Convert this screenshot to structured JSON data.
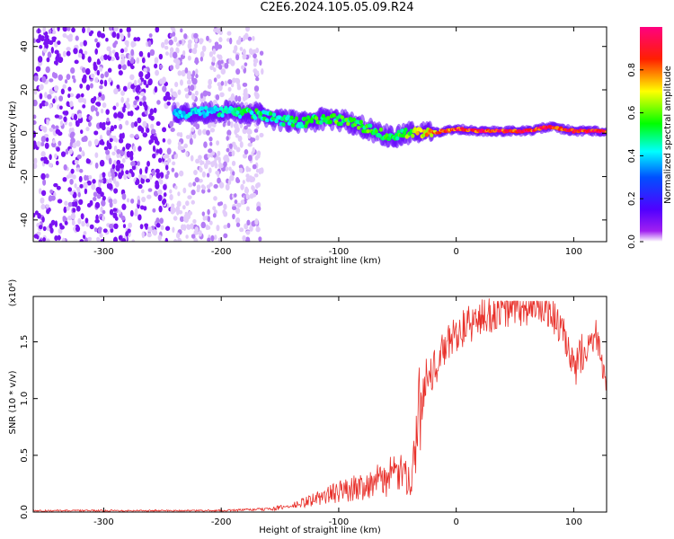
{
  "title": "C2E6.2024.105.05.09.R24",
  "chart_data": [
    {
      "type": "heatmap",
      "xlabel": "Height of straight line (km)",
      "ylabel": "Frequency (Hz)",
      "xlim": [
        -360,
        128
      ],
      "ylim": [
        -50,
        49
      ],
      "xticks": [
        -300,
        -200,
        -100,
        0,
        100
      ],
      "yticks": [
        -40,
        -20,
        0,
        20,
        40
      ],
      "colorbar": {
        "label": "Normalized spectral amplitude",
        "range": [
          0,
          1
        ],
        "ticks": [
          "0.0",
          "0.2",
          "0.4",
          "0.6",
          "0.8"
        ],
        "colormap": [
          "#ffffff",
          "#7f00ff",
          "#0000ff",
          "#00ffff",
          "#00ff00",
          "#ffff00",
          "#ff0000",
          "#ff0080"
        ]
      },
      "noise_region_km": [
        -360,
        -165
      ],
      "ridge": {
        "x": [
          -240,
          -200,
          -170,
          -150,
          -130,
          -110,
          -90,
          -70,
          -55,
          -40,
          -25,
          -10,
          0,
          20,
          60,
          80,
          100,
          128
        ],
        "freq_hz": [
          9,
          10,
          9,
          6,
          5,
          7,
          5,
          1,
          -2,
          0,
          0,
          1,
          2,
          1,
          1,
          3,
          1,
          1
        ],
        "amplitude": [
          0.4,
          0.5,
          0.55,
          0.5,
          0.55,
          0.6,
          0.6,
          0.6,
          0.55,
          0.65,
          0.8,
          0.9,
          0.95,
          1.0,
          1.0,
          0.95,
          1.0,
          1.0
        ]
      }
    },
    {
      "type": "line",
      "xlabel": "Height of straight line (km)",
      "ylabel": "SNR (10 * v/v)",
      "yscale_label": "(x10⁴)",
      "xlim": [
        -360,
        128
      ],
      "ylim": [
        0,
        1.9
      ],
      "xticks": [
        -300,
        -200,
        -100,
        0,
        100
      ],
      "yticks": [
        0.0,
        0.5,
        1.0,
        1.5
      ],
      "ytick_labels": [
        "0.0",
        "0.5",
        "1.0",
        "1.5"
      ],
      "line_color": "#e8302a",
      "series": [
        {
          "x": [
            -360,
            -200,
            -160,
            -140,
            -120,
            -100,
            -80,
            -60,
            -50,
            -40,
            -35,
            -30,
            -25,
            -20,
            -10,
            0,
            20,
            40,
            60,
            80,
            90,
            100,
            110,
            120,
            128
          ],
          "values": [
            0.01,
            0.01,
            0.02,
            0.04,
            0.09,
            0.14,
            0.18,
            0.23,
            0.27,
            0.22,
            0.4,
            0.9,
            1.3,
            1.25,
            1.45,
            1.6,
            1.72,
            1.8,
            1.82,
            1.81,
            1.6,
            1.25,
            1.5,
            1.58,
            1.2
          ]
        }
      ]
    }
  ]
}
